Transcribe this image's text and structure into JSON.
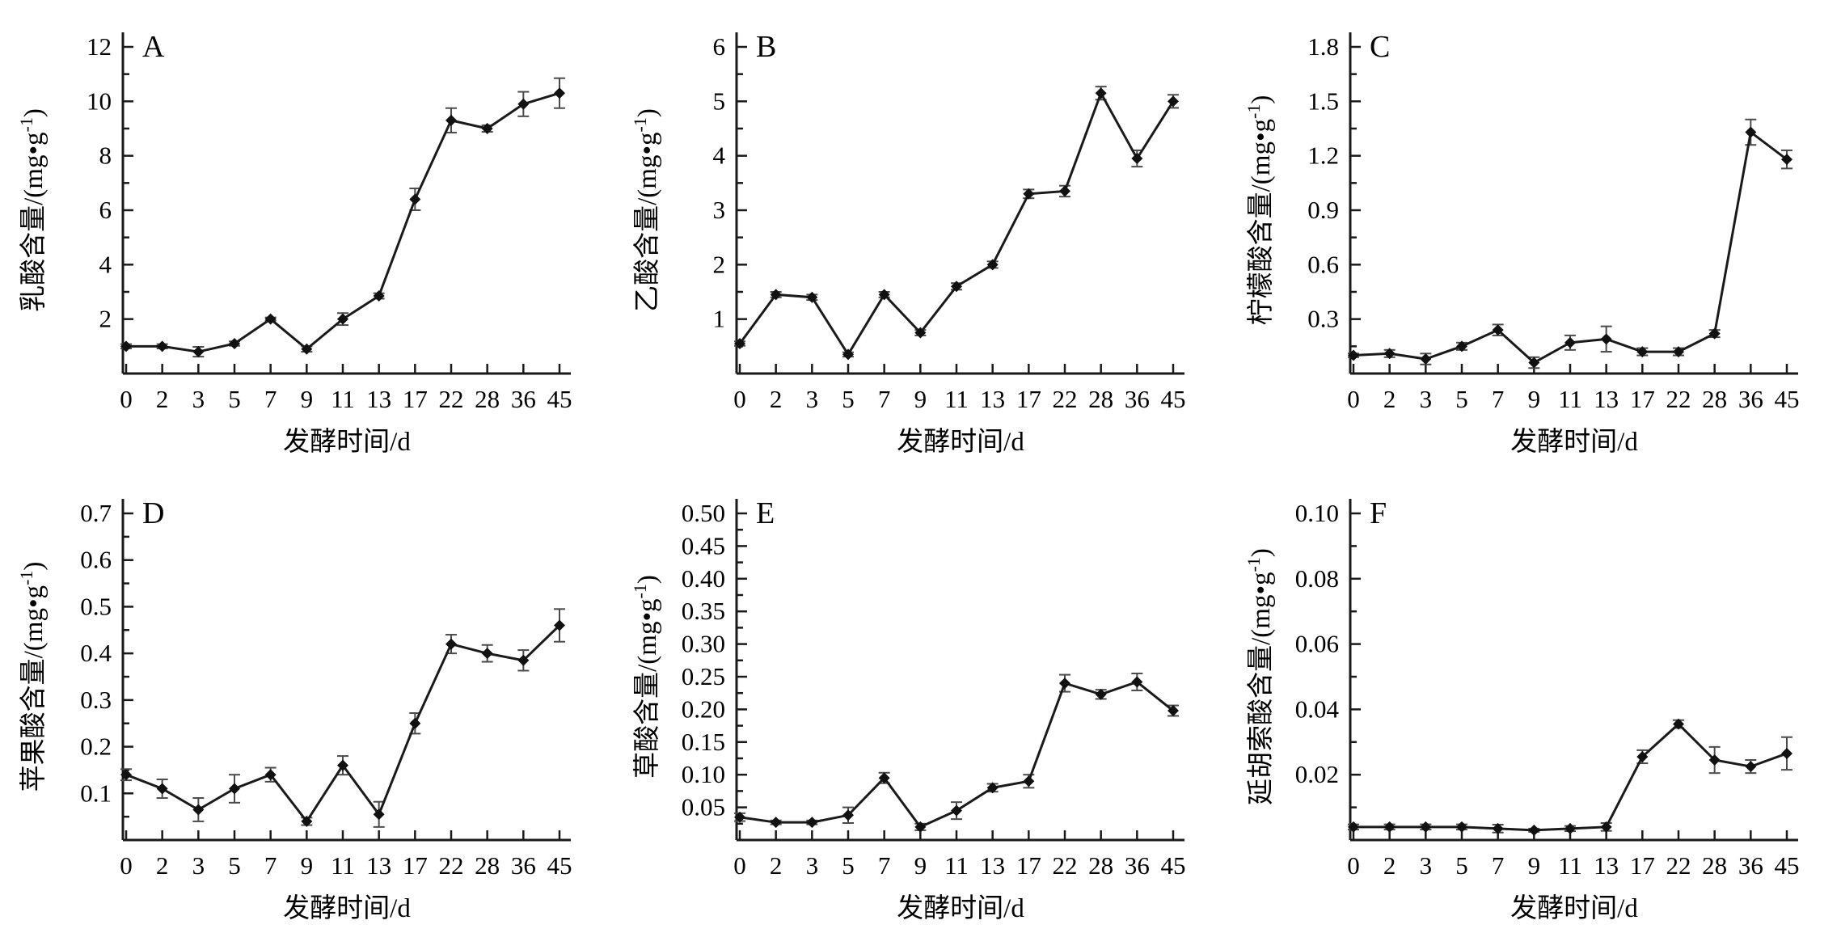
{
  "figure": {
    "title": "",
    "xlabel": "发酵时间/d",
    "x_categories": [
      "0",
      "2",
      "3",
      "5",
      "7",
      "9",
      "11",
      "13",
      "17",
      "22",
      "28",
      "36",
      "45"
    ],
    "colors": {
      "line": "#1a1a1a",
      "marker": "#111111",
      "error_bar": "#4a4a4a",
      "text": "#000000",
      "background": "#ffffff"
    },
    "legend": "none",
    "grid": "off"
  },
  "chart_data": [
    {
      "type": "line",
      "panel_label": "A",
      "ylabel": "乳酸含量/(mg•g⁻¹)",
      "ymax": 12,
      "ytick_step": 2,
      "ytick_decimals": 0,
      "ylim": [
        0,
        12
      ],
      "x": [
        "0",
        "2",
        "3",
        "5",
        "7",
        "9",
        "11",
        "13",
        "17",
        "22",
        "28",
        "36",
        "45"
      ],
      "values": [
        1.0,
        1.0,
        0.8,
        1.1,
        2.0,
        0.9,
        2.0,
        2.85,
        6.4,
        9.3,
        9.0,
        9.9,
        10.3
      ],
      "errors": [
        0.08,
        0.08,
        0.18,
        0.08,
        0.06,
        0.1,
        0.22,
        0.1,
        0.4,
        0.45,
        0.12,
        0.45,
        0.55
      ]
    },
    {
      "type": "line",
      "panel_label": "B",
      "ylabel": "乙酸含量/(mg•g⁻¹)",
      "ymax": 6,
      "ytick_step": 1,
      "ytick_decimals": 0,
      "ylim": [
        0,
        6
      ],
      "x": [
        "0",
        "2",
        "3",
        "5",
        "7",
        "9",
        "11",
        "13",
        "17",
        "22",
        "28",
        "36",
        "45"
      ],
      "values": [
        0.55,
        1.45,
        1.4,
        0.35,
        1.45,
        0.75,
        1.6,
        2.0,
        3.3,
        3.35,
        5.15,
        3.95,
        5.0
      ],
      "errors": [
        0.04,
        0.05,
        0.05,
        0.04,
        0.05,
        0.05,
        0.06,
        0.06,
        0.08,
        0.1,
        0.12,
        0.15,
        0.12
      ]
    },
    {
      "type": "line",
      "panel_label": "C",
      "ylabel": "柠檬酸含量/(mg•g⁻¹)",
      "ymax": 1.8,
      "ytick_step": 0.3,
      "ytick_decimals": 1,
      "ylim": [
        0,
        1.8
      ],
      "x": [
        "0",
        "2",
        "3",
        "5",
        "7",
        "9",
        "11",
        "13",
        "17",
        "22",
        "28",
        "36",
        "45"
      ],
      "values": [
        0.1,
        0.11,
        0.08,
        0.15,
        0.24,
        0.06,
        0.17,
        0.19,
        0.12,
        0.12,
        0.22,
        1.33,
        1.18
      ],
      "errors": [
        0.01,
        0.02,
        0.03,
        0.02,
        0.03,
        0.03,
        0.04,
        0.07,
        0.02,
        0.02,
        0.02,
        0.07,
        0.05
      ]
    },
    {
      "type": "line",
      "panel_label": "D",
      "ylabel": "苹果酸含量/(mg•g⁻¹)",
      "ymax": 0.7,
      "ytick_step": 0.1,
      "ytick_decimals": 1,
      "ylim": [
        0,
        0.7
      ],
      "x": [
        "0",
        "2",
        "3",
        "5",
        "7",
        "9",
        "11",
        "13",
        "17",
        "22",
        "28",
        "36",
        "45"
      ],
      "values": [
        0.14,
        0.11,
        0.065,
        0.11,
        0.14,
        0.04,
        0.16,
        0.055,
        0.25,
        0.42,
        0.4,
        0.385,
        0.46
      ],
      "errors": [
        0.012,
        0.02,
        0.025,
        0.03,
        0.015,
        0.008,
        0.02,
        0.027,
        0.022,
        0.02,
        0.018,
        0.022,
        0.035
      ]
    },
    {
      "type": "line",
      "panel_label": "E",
      "ylabel": "草酸含量/(mg•g⁻¹)",
      "ymax": 0.5,
      "ytick_step": 0.05,
      "ytick_decimals": 2,
      "ylim": [
        0,
        0.5
      ],
      "x": [
        "0",
        "2",
        "3",
        "5",
        "7",
        "9",
        "11",
        "13",
        "17",
        "22",
        "28",
        "36",
        "45"
      ],
      "values": [
        0.035,
        0.027,
        0.027,
        0.038,
        0.095,
        0.02,
        0.045,
        0.08,
        0.09,
        0.24,
        0.223,
        0.242,
        0.198
      ],
      "errors": [
        0.006,
        0.003,
        0.003,
        0.012,
        0.008,
        0.005,
        0.013,
        0.006,
        0.01,
        0.013,
        0.007,
        0.013,
        0.008
      ]
    },
    {
      "type": "line",
      "panel_label": "F",
      "ylabel": "延胡索酸含量/(mg•g⁻¹)",
      "ymax": 0.1,
      "ytick_step": 0.02,
      "ytick_decimals": 2,
      "ylim": [
        0,
        0.1
      ],
      "x": [
        "0",
        "2",
        "3",
        "5",
        "7",
        "9",
        "11",
        "13",
        "17",
        "22",
        "28",
        "36",
        "45"
      ],
      "values": [
        0.004,
        0.004,
        0.004,
        0.004,
        0.0035,
        0.003,
        0.0035,
        0.004,
        0.0255,
        0.0355,
        0.0245,
        0.0225,
        0.0265
      ],
      "errors": [
        0.0008,
        0.0008,
        0.0008,
        0.0008,
        0.0012,
        0.0005,
        0.0008,
        0.0012,
        0.002,
        0.0012,
        0.004,
        0.002,
        0.005
      ]
    }
  ]
}
